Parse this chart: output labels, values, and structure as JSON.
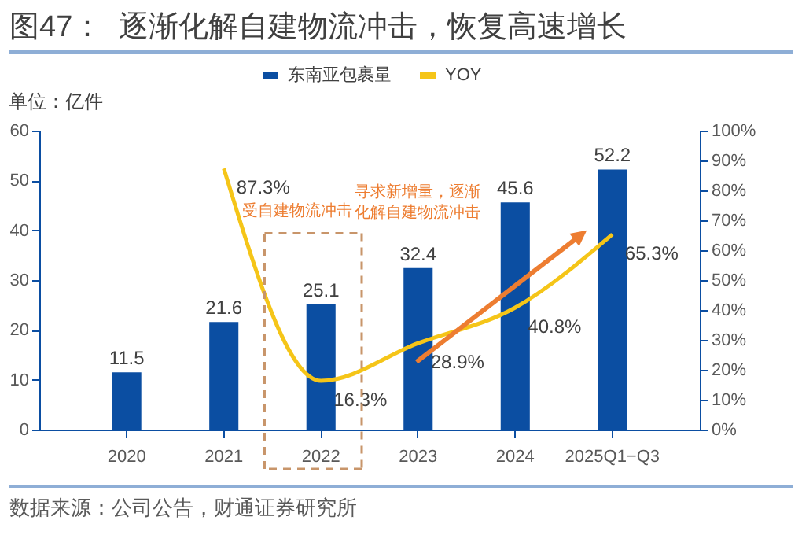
{
  "chart_data": {
    "type": "bar",
    "title": "图47：  逐渐化解自建物流冲击，恢复高速增长",
    "ylabel": "单位：亿件",
    "categories": [
      "2020",
      "2021",
      "2022",
      "2023",
      "2024",
      "2025Q1−Q3"
    ],
    "series": [
      {
        "name": "东南亚包裹量",
        "color": "#0b4ea2",
        "values": [
          11.5,
          21.6,
          25.1,
          32.4,
          45.6,
          52.2
        ],
        "value_labels": [
          "11.5",
          "21.6",
          "25.1",
          "32.4",
          "45.6",
          "52.2"
        ]
      },
      {
        "name": "YOY",
        "type": "line",
        "axis": "y2",
        "color": "#f5c518",
        "values": [
          null,
          87.3,
          16.3,
          28.9,
          40.8,
          65.3
        ],
        "value_labels": [
          null,
          "87.3%",
          "16.3%",
          "28.9%",
          "40.8%",
          "65.3%"
        ]
      }
    ],
    "ylim": [
      0,
      60
    ],
    "yticks": [
      0,
      10,
      20,
      30,
      40,
      50,
      60
    ],
    "y2lim": [
      0,
      100
    ],
    "y2ticks": [
      {
        "value": 0,
        "label": "0%"
      },
      {
        "value": 10,
        "label": "10%"
      },
      {
        "value": 20,
        "label": "20%"
      },
      {
        "value": 30,
        "label": "30%"
      },
      {
        "value": 40,
        "label": "40%"
      },
      {
        "value": 50,
        "label": "50%"
      },
      {
        "value": 60,
        "label": "60%"
      },
      {
        "value": 70,
        "label": "70%"
      },
      {
        "value": 80,
        "label": "80%"
      },
      {
        "value": 90,
        "label": "90%"
      },
      {
        "value": 100,
        "label": "100%"
      }
    ],
    "legend": "top",
    "grid": false,
    "annotations": [
      "受自建物流冲击",
      "寻求新增量，逐渐化解自建物流冲击",
      "数据来源：公司公告，财通证券研究所"
    ]
  }
}
